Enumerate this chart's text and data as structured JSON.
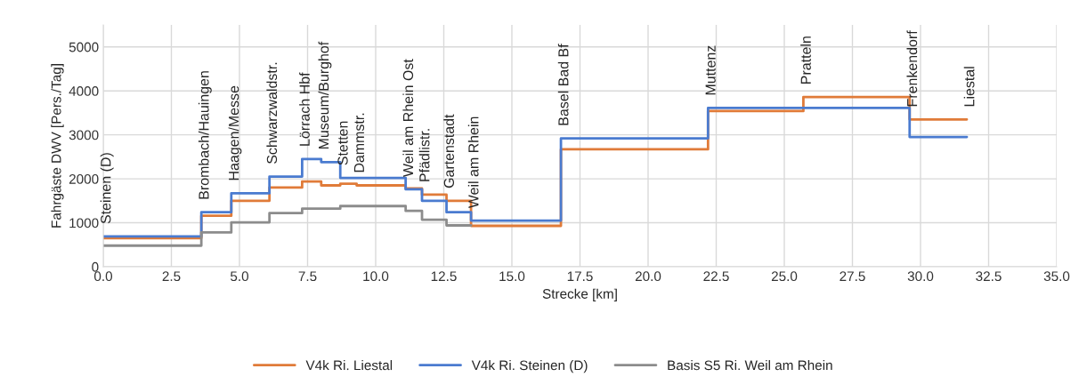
{
  "chart_data": {
    "type": "step",
    "xlabel": "Strecke [km]",
    "ylabel": "Fahrgäste DWV [Pers./Tag]",
    "xlim": [
      0,
      35
    ],
    "xticks": [
      {
        "value": 0,
        "label": "0.0"
      },
      {
        "value": 2.5,
        "label": "2.5"
      },
      {
        "value": 5,
        "label": "5.0"
      },
      {
        "value": 7.5,
        "label": "7.5"
      },
      {
        "value": 10,
        "label": "10.0"
      },
      {
        "value": 12.5,
        "label": "12.5"
      },
      {
        "value": 15,
        "label": "15.0"
      },
      {
        "value": 17.5,
        "label": "17.5"
      },
      {
        "value": 20,
        "label": "20.0"
      },
      {
        "value": 22.5,
        "label": "22.5"
      },
      {
        "value": 25,
        "label": "25.0"
      },
      {
        "value": 27.5,
        "label": "27.5"
      },
      {
        "value": 30,
        "label": "30.0"
      },
      {
        "value": 32.5,
        "label": "32.5"
      },
      {
        "value": 35,
        "label": "35.0"
      }
    ],
    "ylim": [
      0,
      5500
    ],
    "yticks": [
      0,
      1000,
      2000,
      3000,
      4000,
      5000
    ],
    "grid": true,
    "legend": "bottom",
    "series": [
      {
        "name": "V4k Ri. Liestal",
        "color": "#e07b39",
        "x": [
          0,
          3.6,
          4.7,
          6.1,
          7.3,
          8.0,
          8.7,
          9.3,
          11.1,
          11.7,
          12.6,
          13.5,
          16.8,
          22.2,
          25.7,
          29.6,
          31.7
        ],
        "values": [
          650,
          1160,
          1500,
          1800,
          1940,
          1850,
          1890,
          1850,
          1780,
          1640,
          1500,
          930,
          2670,
          3540,
          3860,
          3350,
          3350
        ]
      },
      {
        "name": "V4k Ri. Steinen (D)",
        "color": "#4a7bd0",
        "x": [
          0,
          3.6,
          4.7,
          6.1,
          7.3,
          8.0,
          8.7,
          11.1,
          11.7,
          12.6,
          13.5,
          16.8,
          22.2,
          29.6,
          31.7
        ],
        "values": [
          690,
          1240,
          1670,
          2050,
          2450,
          2380,
          2020,
          1760,
          1500,
          1240,
          1050,
          2920,
          3610,
          2950,
          2950
        ]
      },
      {
        "name": "Basis S5 Ri. Weil am Rhein",
        "color": "#8c8c8c",
        "x": [
          0,
          3.6,
          4.7,
          6.1,
          7.3,
          8.7,
          11.1,
          11.7,
          12.6,
          13.5
        ],
        "values": [
          480,
          780,
          1010,
          1220,
          1320,
          1380,
          1270,
          1070,
          940,
          940
        ]
      }
    ],
    "annotations": [
      {
        "text": "Steinen (D)",
        "x": 0,
        "y": 690
      },
      {
        "text": "Brombach/Hauingen",
        "x": 3.6,
        "y": 1240
      },
      {
        "text": "Haagen/Messe",
        "x": 4.7,
        "y": 1670
      },
      {
        "text": "Schwarzwaldstr.",
        "x": 6.1,
        "y": 2050
      },
      {
        "text": "Lörrach Hbf",
        "x": 7.3,
        "y": 2450
      },
      {
        "text": "Museum/Burghof",
        "x": 8.0,
        "y": 2380
      },
      {
        "text": "Stetten",
        "x": 8.7,
        "y": 2020
      },
      {
        "text": "Dammstr.",
        "x": 9.3,
        "y": 1850
      },
      {
        "text": "Weil am Rhein Ost",
        "x": 11.1,
        "y": 1760
      },
      {
        "text": "Pfädlistr.",
        "x": 11.7,
        "y": 1640
      },
      {
        "text": "Gartenstadt",
        "x": 12.6,
        "y": 1500
      },
      {
        "text": "Weil am Rhein",
        "x": 13.5,
        "y": 1050
      },
      {
        "text": "Basel Bad Bf",
        "x": 16.8,
        "y": 2920
      },
      {
        "text": "Muttenz",
        "x": 22.2,
        "y": 3610
      },
      {
        "text": "Pratteln",
        "x": 25.7,
        "y": 3860
      },
      {
        "text": "Frenkendorf",
        "x": 29.6,
        "y": 3350
      },
      {
        "text": "Liestal",
        "x": 31.7,
        "y": 3350
      }
    ]
  }
}
